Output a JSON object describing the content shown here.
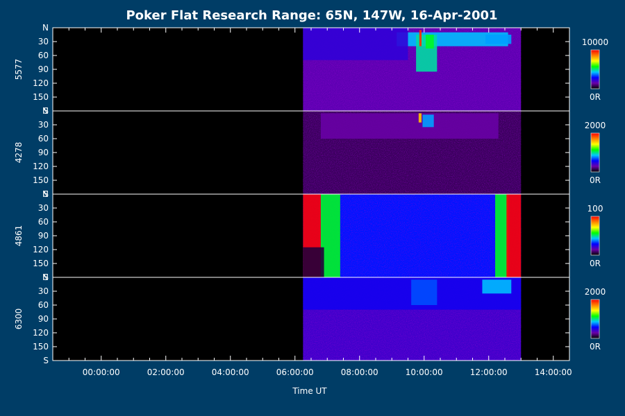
{
  "chart_data": {
    "type": "heatmap",
    "title": "Poker Flat Research Range: 65N, 147W, 16-Apr-2001",
    "xlabel": "Time UT",
    "x_range_hours": [
      -1.5,
      14.5
    ],
    "x_ticks": [
      {
        "label": "00:00:00",
        "hour": 0
      },
      {
        "label": "02:00:00",
        "hour": 2
      },
      {
        "label": "04:00:00",
        "hour": 4
      },
      {
        "label": "06:00:00",
        "hour": 6
      },
      {
        "label": "08:00:00",
        "hour": 8
      },
      {
        "label": "10:00:00",
        "hour": 10
      },
      {
        "label": "12:00:00",
        "hour": 12
      },
      {
        "label": "14:00:00",
        "hour": 14
      }
    ],
    "y_range_deg": [
      0,
      180
    ],
    "y_ticks": [
      {
        "label": "N",
        "deg": 0
      },
      {
        "label": "30",
        "deg": 30
      },
      {
        "label": "60",
        "deg": 60
      },
      {
        "label": "90",
        "deg": 90
      },
      {
        "label": "120",
        "deg": 120
      },
      {
        "label": "150",
        "deg": 150
      },
      {
        "label": "S",
        "deg": 180
      }
    ],
    "data_coverage_hours": [
      6.25,
      13.0
    ],
    "colorscale": [
      "#000000",
      "#6a00a8",
      "#0000ff",
      "#00c8ff",
      "#00ff00",
      "#ffff00",
      "#ff8000",
      "#ff0000"
    ],
    "panels": [
      {
        "ylabel": "5577",
        "cbar_max": "10000",
        "cbar_min": "0R",
        "background_level": 0.16,
        "features": [
          {
            "t0": 9.15,
            "t1": 12.6,
            "d0": 10,
            "d1": 40,
            "level": 0.42
          },
          {
            "t0": 9.75,
            "t1": 10.4,
            "d0": 15,
            "d1": 95,
            "level": 0.48
          },
          {
            "t0": 9.85,
            "t1": 9.92,
            "d0": 5,
            "d1": 40,
            "level": 0.95
          },
          {
            "t0": 10.05,
            "t1": 10.3,
            "d0": 15,
            "d1": 45,
            "level": 0.55
          },
          {
            "t0": 11.9,
            "t1": 12.7,
            "d0": 15,
            "d1": 35,
            "level": 0.4
          },
          {
            "t0": 6.25,
            "t1": 9.5,
            "d0": 0,
            "d1": 70,
            "level": 0.22
          }
        ]
      },
      {
        "ylabel": "4278",
        "cbar_max": "2000",
        "cbar_min": "0R",
        "background_level": 0.08,
        "features": [
          {
            "t0": 6.8,
            "t1": 12.3,
            "d0": 5,
            "d1": 60,
            "level": 0.14
          },
          {
            "t0": 9.83,
            "t1": 9.92,
            "d0": 5,
            "d1": 25,
            "level": 0.78
          },
          {
            "t0": 9.95,
            "t1": 10.3,
            "d0": 8,
            "d1": 35,
            "level": 0.4
          }
        ]
      },
      {
        "ylabel": "4861",
        "cbar_max": "100",
        "cbar_min": "0R",
        "background_level": 0.3,
        "features": [
          {
            "t0": 6.25,
            "t1": 6.8,
            "d0": 0,
            "d1": 180,
            "level": 1.0
          },
          {
            "t0": 6.8,
            "t1": 7.4,
            "d0": 0,
            "d1": 180,
            "level": 0.55
          },
          {
            "t0": 12.2,
            "t1": 12.6,
            "d0": 0,
            "d1": 180,
            "level": 0.55
          },
          {
            "t0": 12.55,
            "t1": 13.0,
            "d0": 0,
            "d1": 180,
            "level": 1.0
          },
          {
            "t0": 6.25,
            "t1": 6.9,
            "d0": 115,
            "d1": 180,
            "level": 0.05
          }
        ]
      },
      {
        "ylabel": "6300",
        "cbar_max": "2000",
        "cbar_min": "0R",
        "background_level": 0.2,
        "features": [
          {
            "t0": 6.25,
            "t1": 13.0,
            "d0": 0,
            "d1": 70,
            "level": 0.26
          },
          {
            "t0": 9.6,
            "t1": 10.4,
            "d0": 5,
            "d1": 60,
            "level": 0.34
          },
          {
            "t0": 11.8,
            "t1": 12.7,
            "d0": 5,
            "d1": 35,
            "level": 0.42
          }
        ]
      }
    ]
  }
}
